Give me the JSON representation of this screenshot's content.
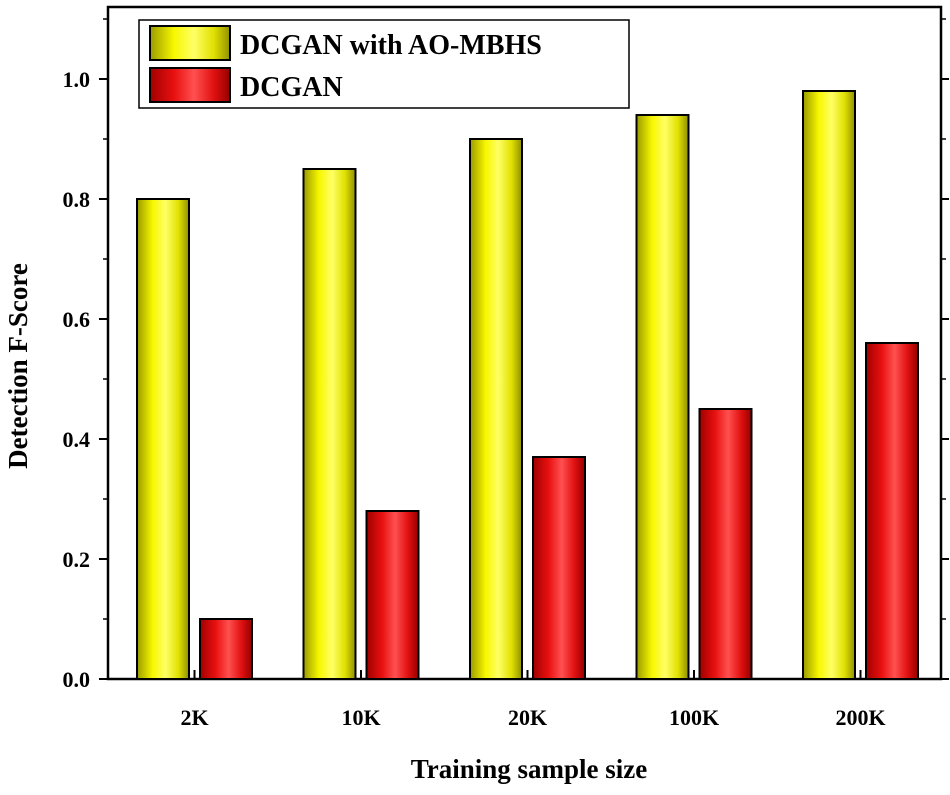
{
  "chart_data": {
    "type": "bar",
    "title": "",
    "xlabel": "Training sample size",
    "ylabel": "Detection F-Score",
    "categories": [
      "2K",
      "10K",
      "20K",
      "100K",
      "200K"
    ],
    "series": [
      {
        "name": "DCGAN with AO-MBHS",
        "color": "#e6e600",
        "values": [
          0.8,
          0.85,
          0.9,
          0.94,
          0.98
        ]
      },
      {
        "name": "DCGAN",
        "color": "#e01010",
        "values": [
          0.1,
          0.28,
          0.37,
          0.45,
          0.56
        ]
      }
    ],
    "ylim": [
      0,
      1.12
    ],
    "yticks": [
      "0.0",
      "0.2",
      "0.4",
      "0.6",
      "0.8",
      "1.0"
    ],
    "grid": false,
    "legend_position": "top-left"
  }
}
